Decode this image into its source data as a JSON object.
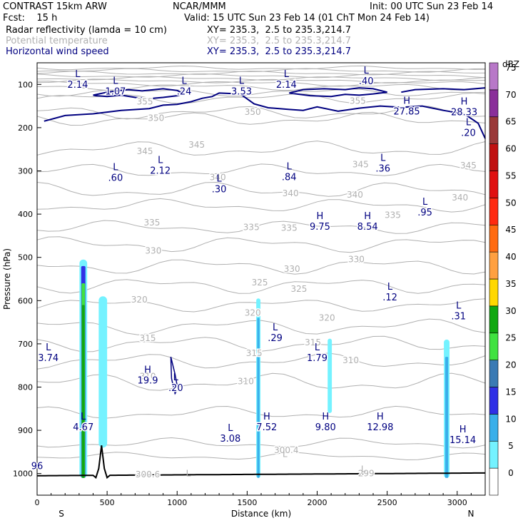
{
  "header": {
    "model": "CONTRAST 15km ARW",
    "org": "NCAR/MMM",
    "init": "Init: 00 UTC Sun 23 Feb 14",
    "fcst": "Fcst:    15 h",
    "valid": "Valid: 15 UTC Sun 23 Feb 14 (01 ChT Mon 24 Feb 14)",
    "fields": [
      {
        "name": "Radar reflectivity (lamda = 10 cm)",
        "xy": "XY= 235.3,  2.5 to 235.3,214.7"
      },
      {
        "name": "Potential temperature",
        "xy": "XY= 235.3,  2.5 to 235.3,214.7"
      },
      {
        "name": "Horizontal wind speed",
        "xy": "XY= 235.3,  2.5 to 235.3,214.7"
      }
    ]
  },
  "colors": {
    "theta": "#b0b0b0",
    "wind": "#000080",
    "terrain": "#000000"
  },
  "chart_data": {
    "type": "cross-section",
    "xlabel": "Distance (km)",
    "ylabel": "Pressure (hPa)",
    "xlim": [
      0,
      3200
    ],
    "ylim": [
      1050,
      50
    ],
    "xticks": [
      0,
      500,
      1000,
      1500,
      2000,
      2500,
      3000
    ],
    "yticks": [
      100,
      200,
      300,
      400,
      500,
      600,
      700,
      800,
      900,
      1000
    ],
    "x_end_labels": {
      "left": "S",
      "right": "N"
    },
    "colorbar": {
      "title": "dBZ",
      "levels": [
        0,
        5,
        10,
        15,
        20,
        25,
        30,
        35,
        40,
        45,
        50,
        55,
        60,
        65,
        70,
        75
      ],
      "colors": [
        "#ffffff",
        "#74f2ff",
        "#3aafea",
        "#3030e6",
        "#3a7ab4",
        "#40e240",
        "#10a810",
        "#ffd800",
        "#ffa040",
        "#ff6a10",
        "#ff2a10",
        "#e01010",
        "#c01010",
        "#9a3838",
        "#8a2e9a",
        "#b878c8"
      ]
    },
    "theta_labels": [
      {
        "text": "350",
        "x": 850,
        "p": 178
      },
      {
        "text": "350",
        "x": 1540,
        "p": 164
      },
      {
        "text": "355",
        "x": 770,
        "p": 140
      },
      {
        "text": "355",
        "x": 2290,
        "p": 138
      },
      {
        "text": "345",
        "x": 770,
        "p": 255
      },
      {
        "text": "345",
        "x": 1140,
        "p": 240
      },
      {
        "text": "345",
        "x": 2310,
        "p": 285
      },
      {
        "text": "345",
        "x": 3080,
        "p": 288
      },
      {
        "text": "340",
        "x": 1290,
        "p": 315
      },
      {
        "text": "340",
        "x": 1810,
        "p": 352
      },
      {
        "text": "340",
        "x": 2270,
        "p": 355
      },
      {
        "text": "340",
        "x": 3020,
        "p": 362
      },
      {
        "text": "335",
        "x": 820,
        "p": 420
      },
      {
        "text": "335",
        "x": 1530,
        "p": 430
      },
      {
        "text": "335",
        "x": 1800,
        "p": 432
      },
      {
        "text": "335",
        "x": 2540,
        "p": 402
      },
      {
        "text": "330",
        "x": 830,
        "p": 485
      },
      {
        "text": "330",
        "x": 1820,
        "p": 527
      },
      {
        "text": "330",
        "x": 2280,
        "p": 505
      },
      {
        "text": "325",
        "x": 1590,
        "p": 558
      },
      {
        "text": "325",
        "x": 1870,
        "p": 573
      },
      {
        "text": "320",
        "x": 730,
        "p": 598
      },
      {
        "text": "320",
        "x": 1540,
        "p": 628
      },
      {
        "text": "320",
        "x": 2070,
        "p": 640
      },
      {
        "text": "315",
        "x": 790,
        "p": 687
      },
      {
        "text": "315",
        "x": 1550,
        "p": 722
      },
      {
        "text": "315",
        "x": 1970,
        "p": 697
      },
      {
        "text": "310",
        "x": 790,
        "p": 775
      },
      {
        "text": "310",
        "x": 1490,
        "p": 787
      },
      {
        "text": "310",
        "x": 2240,
        "p": 738
      },
      {
        "text": "300.6",
        "x": 790,
        "p": 1002
      },
      {
        "text": "300.4",
        "x": 1780,
        "p": 946
      },
      {
        "text": "299",
        "x": 2350,
        "p": 1000
      }
    ],
    "theta_extrema": [
      {
        "type": "L",
        "x": 1080,
        "p": 1000
      },
      {
        "type": "L",
        "x": 1770,
        "p": 955
      },
      {
        "type": "L",
        "x": 2330,
        "p": 990
      }
    ],
    "wind_extrema": [
      {
        "type": "L",
        "value": "2.14",
        "x": 290,
        "p": 86
      },
      {
        "type": "L",
        "value": "1.07",
        "x": 560,
        "p": 102
      },
      {
        "type": "L",
        "value": ".24",
        "x": 1050,
        "p": 102
      },
      {
        "type": "L",
        "value": "3.53",
        "x": 1460,
        "p": 102
      },
      {
        "type": "L",
        "value": "2.14",
        "x": 1780,
        "p": 86
      },
      {
        "type": "L",
        "value": ".40",
        "x": 2350,
        "p": 78
      },
      {
        "type": "H",
        "value": "27.85",
        "x": 2640,
        "p": 148
      },
      {
        "type": "H",
        "value": "28.33",
        "x": 3050,
        "p": 150
      },
      {
        "type": "L",
        "value": ".20",
        "x": 3080,
        "p": 198
      },
      {
        "type": "L",
        "value": ".60",
        "x": 560,
        "p": 302
      },
      {
        "type": "L",
        "value": "2.12",
        "x": 880,
        "p": 285
      },
      {
        "type": "L",
        "value": ".30",
        "x": 1300,
        "p": 328
      },
      {
        "type": "L",
        "value": ".84",
        "x": 1800,
        "p": 300
      },
      {
        "type": "L",
        "value": ".36",
        "x": 2470,
        "p": 280
      },
      {
        "type": "L",
        "value": ".95",
        "x": 2770,
        "p": 382
      },
      {
        "type": "H",
        "value": "9.75",
        "x": 2020,
        "p": 415
      },
      {
        "type": "H",
        "value": "8.54",
        "x": 2360,
        "p": 415
      },
      {
        "type": "L",
        "value": ".12",
        "x": 2520,
        "p": 578
      },
      {
        "type": "L",
        "value": ".31",
        "x": 3010,
        "p": 622
      },
      {
        "type": "L",
        "value": ".29",
        "x": 1700,
        "p": 672
      },
      {
        "type": "L",
        "value": "1.79",
        "x": 2000,
        "p": 718
      },
      {
        "type": "L",
        "value": "3.74",
        "x": 80,
        "p": 718
      },
      {
        "type": "H",
        "value": "19.9",
        "x": 790,
        "p": 770
      },
      {
        "type": "L",
        "value": ".20",
        "x": 990,
        "p": 788
      },
      {
        "type": "L",
        "value": "4.67",
        "x": 330,
        "p": 878
      },
      {
        "type": "H",
        "value": "7.52",
        "x": 1640,
        "p": 878
      },
      {
        "type": "H",
        "value": "9.80",
        "x": 2060,
        "p": 878
      },
      {
        "type": "H",
        "value": "12.98",
        "x": 2450,
        "p": 878
      },
      {
        "type": "L",
        "value": "3.08",
        "x": 1380,
        "p": 905
      },
      {
        "type": "H",
        "value": "15.14",
        "x": 3040,
        "p": 908
      },
      {
        "type": "",
        "value": "96",
        "x": 0,
        "p": 968
      }
    ],
    "reflectivity_columns": [
      {
        "x": 330,
        "p_top": 505,
        "p_bottom": 1010,
        "width_km": 55,
        "core": [
          {
            "dbz": 15,
            "p_top": 520
          },
          {
            "dbz": 25,
            "p_top": 560
          },
          {
            "dbz": 30,
            "p_top": 610
          }
        ]
      },
      {
        "x": 470,
        "p_top": 590,
        "p_bottom": 940,
        "width_km": 60,
        "core": []
      },
      {
        "x": 1580,
        "p_top": 595,
        "p_bottom": 1010,
        "width_km": 30,
        "core": [
          {
            "dbz": 10,
            "p_top": 640
          }
        ]
      },
      {
        "x": 2090,
        "p_top": 688,
        "p_bottom": 860,
        "width_km": 30,
        "core": []
      },
      {
        "x": 2925,
        "p_top": 690,
        "p_bottom": 1010,
        "width_km": 40,
        "core": [
          {
            "dbz": 10,
            "p_top": 730
          }
        ]
      }
    ]
  }
}
